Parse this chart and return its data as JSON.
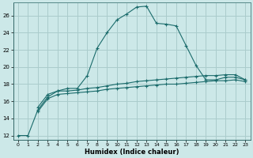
{
  "xlabel": "Humidex (Indice chaleur)",
  "ylabel": "",
  "bg_color": "#cce8e8",
  "grid_color": "#aacccc",
  "line_color": "#1a6b6b",
  "xlim": [
    -0.5,
    23.5
  ],
  "ylim": [
    11.5,
    27.5
  ],
  "xticks": [
    0,
    1,
    2,
    3,
    4,
    5,
    6,
    7,
    8,
    9,
    10,
    11,
    12,
    13,
    14,
    15,
    16,
    17,
    18,
    19,
    20,
    21,
    22,
    23
  ],
  "yticks": [
    12,
    14,
    16,
    18,
    20,
    22,
    24,
    26
  ],
  "line1_x": [
    0,
    1,
    2,
    3,
    4,
    5,
    6,
    7,
    8,
    9,
    10,
    11,
    12,
    13,
    14,
    15,
    16,
    17,
    18,
    19,
    20,
    21,
    22,
    23
  ],
  "line1_y": [
    12,
    12,
    15,
    16.5,
    17.2,
    17.5,
    17.5,
    19.0,
    22.2,
    24.0,
    25.5,
    26.2,
    27.0,
    27.1,
    25.1,
    25.0,
    24.8,
    22.5,
    20.2,
    18.5,
    18.5,
    18.8,
    18.8,
    18.5
  ],
  "line2_x": [
    2,
    3,
    4,
    5,
    6,
    7,
    8,
    9,
    10,
    11,
    12,
    13,
    14,
    15,
    16,
    17,
    18,
    19,
    20,
    21,
    22,
    23
  ],
  "line2_y": [
    15.3,
    16.8,
    17.2,
    17.2,
    17.3,
    17.5,
    17.6,
    17.8,
    18.0,
    18.1,
    18.3,
    18.4,
    18.5,
    18.6,
    18.7,
    18.8,
    18.9,
    19.0,
    19.0,
    19.1,
    19.1,
    18.5
  ],
  "line3_x": [
    2,
    3,
    4,
    5,
    6,
    7,
    8,
    9,
    10,
    11,
    12,
    13,
    14,
    15,
    16,
    17,
    18,
    19,
    20,
    21,
    22,
    23
  ],
  "line3_y": [
    14.8,
    16.3,
    16.8,
    16.9,
    17.0,
    17.1,
    17.2,
    17.4,
    17.5,
    17.6,
    17.7,
    17.8,
    17.9,
    18.0,
    18.0,
    18.1,
    18.2,
    18.3,
    18.4,
    18.4,
    18.5,
    18.3
  ]
}
